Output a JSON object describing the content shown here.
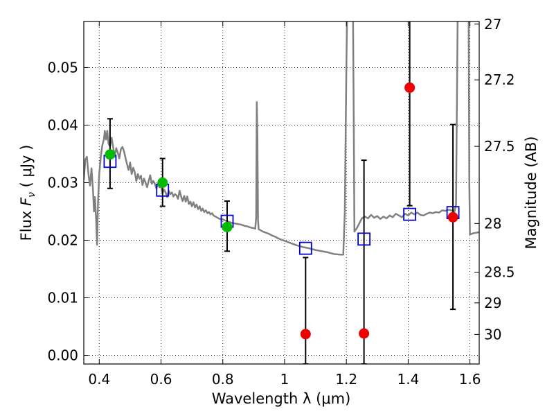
{
  "chart_data": {
    "type": "scatter",
    "xlabel": "Wavelength  λ (μm)",
    "ylabel": "Flux  F_ν  ( μJy )",
    "ylabel_right": "Magnitude (AB)",
    "xlim": [
      0.35,
      1.63
    ],
    "ylim": [
      -0.0015,
      0.058
    ],
    "grid": true,
    "x_ticks": [
      {
        "value": 0.4,
        "label": "0.4"
      },
      {
        "value": 0.6,
        "label": "0.6"
      },
      {
        "value": 0.8,
        "label": "0.8"
      },
      {
        "value": 1.0,
        "label": "1"
      },
      {
        "value": 1.2,
        "label": "1.2"
      },
      {
        "value": 1.4,
        "label": "1.4"
      },
      {
        "value": 1.6,
        "label": "1.6"
      }
    ],
    "y_ticks": [
      {
        "value": 0.0,
        "label": "0.00"
      },
      {
        "value": 0.01,
        "label": "0.01"
      },
      {
        "value": 0.02,
        "label": "0.02"
      },
      {
        "value": 0.03,
        "label": "0.03"
      },
      {
        "value": 0.04,
        "label": "0.04"
      },
      {
        "value": 0.05,
        "label": "0.05"
      }
    ],
    "right_ticks": [
      {
        "value": 27,
        "label": "27"
      },
      {
        "value": 27.2,
        "label": "27.2"
      },
      {
        "value": 27.5,
        "label": "27.5"
      },
      {
        "value": 28,
        "label": "28"
      },
      {
        "value": 28.5,
        "label": "28.5"
      },
      {
        "value": 29,
        "label": "29"
      },
      {
        "value": 30,
        "label": "30"
      }
    ],
    "colors": {
      "model": "#808080",
      "model_points": "#0000cc",
      "detections": "#00bb00",
      "non_detections": "#ee0000",
      "errorbar": "#000000",
      "grid": "#000000"
    },
    "model_spectrum": [
      [
        0.35,
        0.0305
      ],
      [
        0.355,
        0.034
      ],
      [
        0.36,
        0.0345
      ],
      [
        0.365,
        0.0315
      ],
      [
        0.37,
        0.0295
      ],
      [
        0.375,
        0.0325
      ],
      [
        0.38,
        0.0285
      ],
      [
        0.383,
        0.025
      ],
      [
        0.386,
        0.0275
      ],
      [
        0.39,
        0.0235
      ],
      [
        0.393,
        0.0192
      ],
      [
        0.396,
        0.0265
      ],
      [
        0.4,
        0.0315
      ],
      [
        0.405,
        0.0345
      ],
      [
        0.41,
        0.0365
      ],
      [
        0.415,
        0.0375
      ],
      [
        0.418,
        0.039
      ],
      [
        0.422,
        0.0375
      ],
      [
        0.426,
        0.039
      ],
      [
        0.43,
        0.0368
      ],
      [
        0.435,
        0.0363
      ],
      [
        0.44,
        0.0378
      ],
      [
        0.445,
        0.0362
      ],
      [
        0.45,
        0.0345
      ],
      [
        0.455,
        0.036
      ],
      [
        0.46,
        0.0352
      ],
      [
        0.465,
        0.0342
      ],
      [
        0.47,
        0.0358
      ],
      [
        0.475,
        0.0362
      ],
      [
        0.48,
        0.0355
      ],
      [
        0.485,
        0.0343
      ],
      [
        0.49,
        0.0332
      ],
      [
        0.495,
        0.0322
      ],
      [
        0.5,
        0.0335
      ],
      [
        0.505,
        0.0315
      ],
      [
        0.51,
        0.0326
      ],
      [
        0.515,
        0.0318
      ],
      [
        0.52,
        0.0303
      ],
      [
        0.525,
        0.0315
      ],
      [
        0.53,
        0.0307
      ],
      [
        0.535,
        0.0312
      ],
      [
        0.54,
        0.0296
      ],
      [
        0.545,
        0.0307
      ],
      [
        0.55,
        0.03
      ],
      [
        0.555,
        0.0292
      ],
      [
        0.56,
        0.0303
      ],
      [
        0.565,
        0.0313
      ],
      [
        0.57,
        0.0298
      ],
      [
        0.575,
        0.0303
      ],
      [
        0.58,
        0.0298
      ],
      [
        0.585,
        0.029
      ],
      [
        0.59,
        0.0298
      ],
      [
        0.595,
        0.0292
      ],
      [
        0.6,
        0.0294
      ],
      [
        0.605,
        0.0282
      ],
      [
        0.61,
        0.0288
      ],
      [
        0.615,
        0.0283
      ],
      [
        0.62,
        0.0275
      ],
      [
        0.625,
        0.0286
      ],
      [
        0.63,
        0.028
      ],
      [
        0.635,
        0.0283
      ],
      [
        0.64,
        0.0276
      ],
      [
        0.645,
        0.028
      ],
      [
        0.65,
        0.0278
      ],
      [
        0.655,
        0.0272
      ],
      [
        0.66,
        0.0286
      ],
      [
        0.665,
        0.0276
      ],
      [
        0.67,
        0.0268
      ],
      [
        0.675,
        0.0277
      ],
      [
        0.68,
        0.0267
      ],
      [
        0.685,
        0.0276
      ],
      [
        0.69,
        0.0263
      ],
      [
        0.695,
        0.0267
      ],
      [
        0.7,
        0.0259
      ],
      [
        0.705,
        0.0266
      ],
      [
        0.71,
        0.0257
      ],
      [
        0.715,
        0.0262
      ],
      [
        0.72,
        0.0254
      ],
      [
        0.725,
        0.0259
      ],
      [
        0.73,
        0.0251
      ],
      [
        0.735,
        0.0255
      ],
      [
        0.74,
        0.0249
      ],
      [
        0.745,
        0.0252
      ],
      [
        0.75,
        0.0247
      ],
      [
        0.755,
        0.0249
      ],
      [
        0.76,
        0.0245
      ],
      [
        0.765,
        0.0247
      ],
      [
        0.77,
        0.0243
      ],
      [
        0.78,
        0.024
      ],
      [
        0.79,
        0.0237
      ],
      [
        0.8,
        0.0236
      ],
      [
        0.81,
        0.0234
      ],
      [
        0.82,
        0.0232
      ],
      [
        0.83,
        0.023
      ],
      [
        0.84,
        0.0229
      ],
      [
        0.85,
        0.0228
      ],
      [
        0.86,
        0.0227
      ],
      [
        0.87,
        0.0225
      ],
      [
        0.88,
        0.0224
      ],
      [
        0.89,
        0.0222
      ],
      [
        0.9,
        0.0221
      ],
      [
        0.905,
        0.022
      ],
      [
        0.908,
        0.024
      ],
      [
        0.91,
        0.044
      ],
      [
        0.912,
        0.038
      ],
      [
        0.914,
        0.0235
      ],
      [
        0.916,
        0.0219
      ],
      [
        0.92,
        0.0218
      ],
      [
        0.93,
        0.0215
      ],
      [
        0.94,
        0.0213
      ],
      [
        0.95,
        0.0211
      ],
      [
        0.96,
        0.0208
      ],
      [
        0.97,
        0.0206
      ],
      [
        0.98,
        0.0203
      ],
      [
        0.99,
        0.0201
      ],
      [
        1.0,
        0.0199
      ],
      [
        1.02,
        0.0195
      ],
      [
        1.04,
        0.0191
      ],
      [
        1.06,
        0.0188
      ],
      [
        1.08,
        0.0186
      ],
      [
        1.1,
        0.0183
      ],
      [
        1.12,
        0.0181
      ],
      [
        1.14,
        0.0179
      ],
      [
        1.16,
        0.0176
      ],
      [
        1.18,
        0.0175
      ],
      [
        1.19,
        0.0175
      ],
      [
        1.195,
        0.025
      ],
      [
        1.2,
        0.05
      ],
      [
        1.205,
        0.07
      ],
      [
        1.22,
        0.07
      ],
      [
        1.224,
        0.04
      ],
      [
        1.226,
        0.0215
      ],
      [
        1.235,
        0.0222
      ],
      [
        1.25,
        0.0238
      ],
      [
        1.26,
        0.0241
      ],
      [
        1.27,
        0.0238
      ],
      [
        1.28,
        0.0244
      ],
      [
        1.29,
        0.0239
      ],
      [
        1.3,
        0.0242
      ],
      [
        1.31,
        0.0237
      ],
      [
        1.32,
        0.0241
      ],
      [
        1.33,
        0.0238
      ],
      [
        1.34,
        0.0243
      ],
      [
        1.35,
        0.024
      ],
      [
        1.36,
        0.0246
      ],
      [
        1.37,
        0.0243
      ],
      [
        1.38,
        0.024
      ],
      [
        1.39,
        0.0246
      ],
      [
        1.4,
        0.0243
      ],
      [
        1.41,
        0.0248
      ],
      [
        1.42,
        0.0245
      ],
      [
        1.43,
        0.0248
      ],
      [
        1.44,
        0.0244
      ],
      [
        1.45,
        0.0243
      ],
      [
        1.46,
        0.0246
      ],
      [
        1.47,
        0.0248
      ],
      [
        1.48,
        0.0247
      ],
      [
        1.49,
        0.0249
      ],
      [
        1.5,
        0.0248
      ],
      [
        1.51,
        0.0252
      ],
      [
        1.52,
        0.0251
      ],
      [
        1.53,
        0.0253
      ],
      [
        1.54,
        0.0252
      ],
      [
        1.55,
        0.025
      ],
      [
        1.555,
        0.0262
      ],
      [
        1.558,
        0.045
      ],
      [
        1.562,
        0.07
      ],
      [
        1.595,
        0.07
      ],
      [
        1.598,
        0.03
      ],
      [
        1.6,
        0.021
      ],
      [
        1.61,
        0.0212
      ],
      [
        1.62,
        0.0213
      ],
      [
        1.63,
        0.0214
      ]
    ],
    "model_points": [
      {
        "x": 0.435,
        "y": 0.0337
      },
      {
        "x": 0.605,
        "y": 0.0287
      },
      {
        "x": 0.814,
        "y": 0.0233
      },
      {
        "x": 1.068,
        "y": 0.0186
      },
      {
        "x": 1.257,
        "y": 0.0202
      },
      {
        "x": 1.405,
        "y": 0.0245
      },
      {
        "x": 1.545,
        "y": 0.0248
      }
    ],
    "detections": [
      {
        "x": 0.435,
        "y": 0.0349,
        "err_low": 0.029,
        "err_high": 0.0411
      },
      {
        "x": 0.605,
        "y": 0.03,
        "err_low": 0.0259,
        "err_high": 0.0342
      },
      {
        "x": 0.814,
        "y": 0.0223,
        "err_low": 0.0181,
        "err_high": 0.0268
      }
    ],
    "non_detections": [
      {
        "x": 1.068,
        "y": 0.0037,
        "err_low": -0.0015,
        "err_high": 0.017
      },
      {
        "x": 1.257,
        "y": 0.0038,
        "err_low": -0.0015,
        "err_high": 0.0339
      },
      {
        "x": 1.405,
        "y": 0.0465,
        "err_low": 0.026,
        "err_high": 0.06
      },
      {
        "x": 1.545,
        "y": 0.024,
        "err_low": 0.008,
        "err_high": 0.0401
      }
    ]
  }
}
